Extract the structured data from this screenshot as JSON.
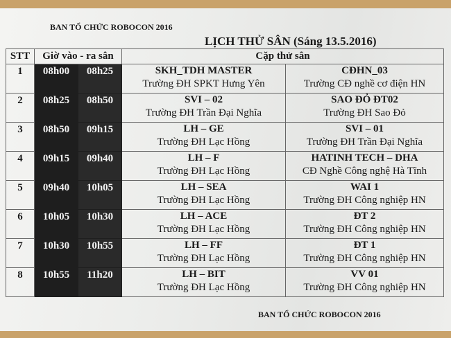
{
  "header": {
    "organizer": "BAN TỔ CHỨC ROBOCON 2016",
    "title": "LỊCH THỬ SÂN (Sáng 13.5.2016)"
  },
  "table": {
    "columns": {
      "stt": "STT",
      "time": "Giờ vào - ra sân",
      "pair": "Cặp thử sân"
    },
    "rows": [
      {
        "stt": "1",
        "in": "08h00",
        "out": "08h25",
        "team1": "SKH_TDH MASTER",
        "school1": "Trường ĐH SPKT Hưng Yên",
        "team2": "CĐHN_03",
        "school2": "Trường CĐ nghề cơ điện HN"
      },
      {
        "stt": "2",
        "in": "08h25",
        "out": "08h50",
        "team1": "SVI – 02",
        "school1": "Trường ĐH Trần Đại Nghĩa",
        "team2": "SAO ĐỎ ĐT02",
        "school2": "Trường ĐH Sao Đỏ"
      },
      {
        "stt": "3",
        "in": "08h50",
        "out": "09h15",
        "team1": "LH – GE",
        "school1": "Trường ĐH Lạc Hồng",
        "team2": "SVI – 01",
        "school2": "Trường ĐH Trần Đại Nghĩa"
      },
      {
        "stt": "4",
        "in": "09h15",
        "out": "09h40",
        "team1": "LH – F",
        "school1": "Trường ĐH Lạc Hồng",
        "team2": "HATINH TECH – DHA",
        "school2": "CĐ Nghề Công nghệ Hà Tĩnh"
      },
      {
        "stt": "5",
        "in": "09h40",
        "out": "10h05",
        "team1": "LH – SEA",
        "school1": "Trường ĐH Lạc Hồng",
        "team2": "WAI 1",
        "school2": "Trường ĐH Công nghiệp HN"
      },
      {
        "stt": "6",
        "in": "10h05",
        "out": "10h30",
        "team1": "LH – ACE",
        "school1": "Trường ĐH Lạc Hồng",
        "team2": "ĐT 2",
        "school2": "Trường ĐH Công nghiệp HN"
      },
      {
        "stt": "7",
        "in": "10h30",
        "out": "10h55",
        "team1": "LH – FF",
        "school1": "Trường ĐH Lạc Hồng",
        "team2": "ĐT 1",
        "school2": "Trường ĐH Công nghiệp HN"
      },
      {
        "stt": "8",
        "in": "10h55",
        "out": "11h20",
        "team1": "LH – BIT",
        "school1": "Trường ĐH Lạc Hồng",
        "team2": "VV 01",
        "school2": "Trường ĐH Công nghiệp HN"
      }
    ]
  },
  "footer": {
    "organizer": "BAN TỔ CHỨC ROBOCON 2016"
  }
}
